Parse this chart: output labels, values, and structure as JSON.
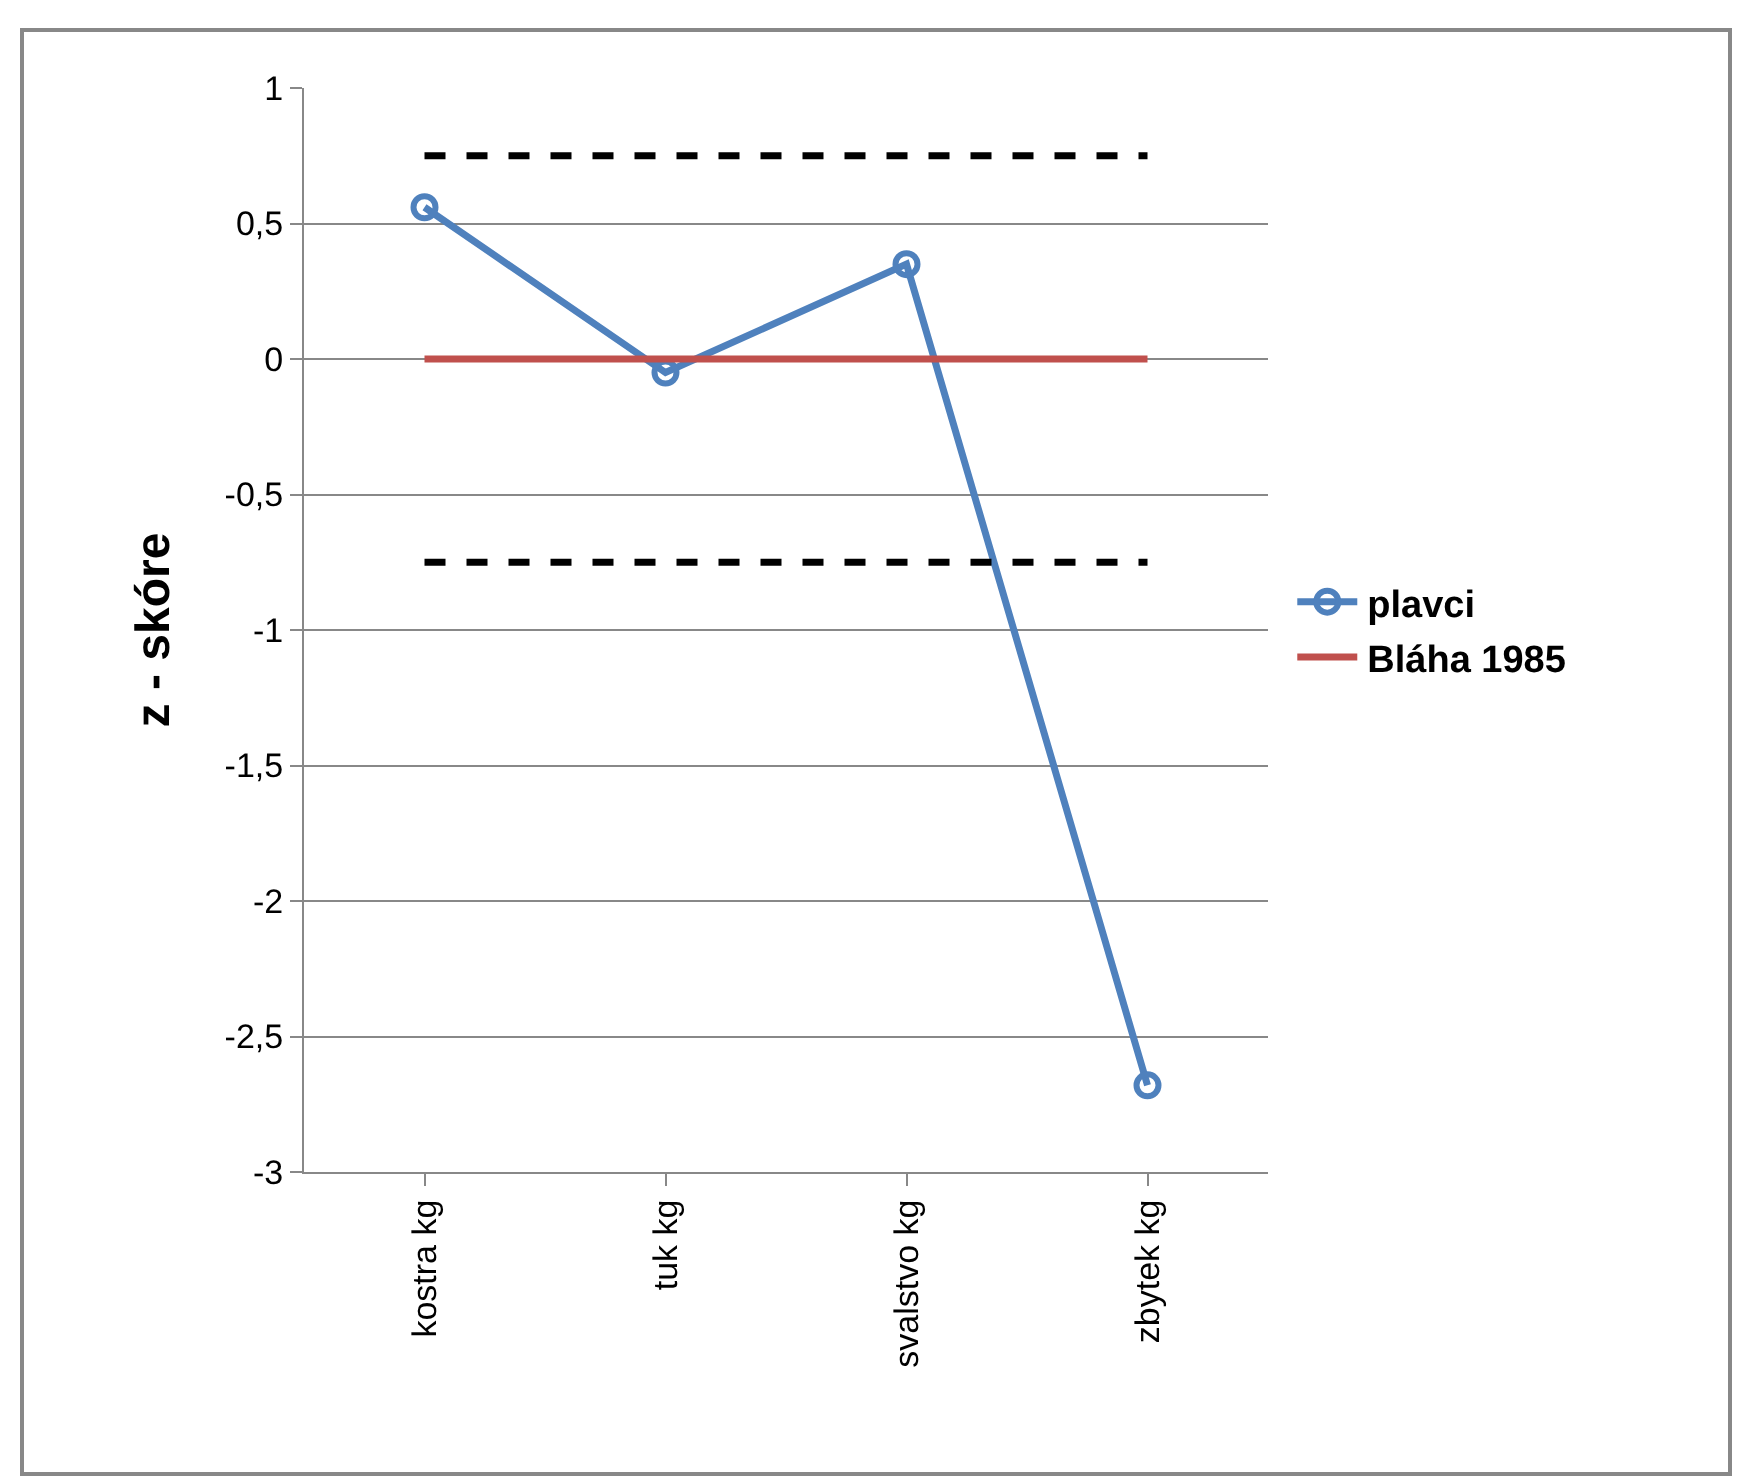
{
  "chart_data": {
    "type": "line",
    "ylabel": "z - skóre",
    "categories": [
      "kostra kg",
      "tuk kg",
      "svalstvo kg",
      "zbytek kg"
    ],
    "series": [
      {
        "name": "plavci",
        "color": "#4f81bd",
        "values": [
          0.56,
          -0.05,
          0.35,
          -2.68
        ]
      },
      {
        "name": "Bláha 1985",
        "color": "#c0504d",
        "values": [
          0,
          0,
          0,
          0
        ],
        "marker": "none"
      }
    ],
    "ref_lines": [
      {
        "axis": "y",
        "value": 0.75,
        "color": "#000000",
        "line_style": "dashed"
      },
      {
        "axis": "y",
        "value": -0.75,
        "color": "#000000",
        "line_style": "dashed"
      }
    ],
    "ylim": [
      -3,
      1
    ],
    "yticks": [
      {
        "value": -3,
        "label": "-3"
      },
      {
        "value": -2.5,
        "label": "-2,5"
      },
      {
        "value": -2,
        "label": "-2"
      },
      {
        "value": -1.5,
        "label": "-1,5"
      },
      {
        "value": -1,
        "label": "-1"
      },
      {
        "value": -0.5,
        "label": "-0,5"
      },
      {
        "value": 0,
        "label": "0"
      },
      {
        "value": 0.5,
        "label": "0,5"
      },
      {
        "value": 1,
        "label": "1"
      }
    ],
    "grid": "y",
    "legend": "right",
    "marker": "circle",
    "line_style": "solid"
  }
}
